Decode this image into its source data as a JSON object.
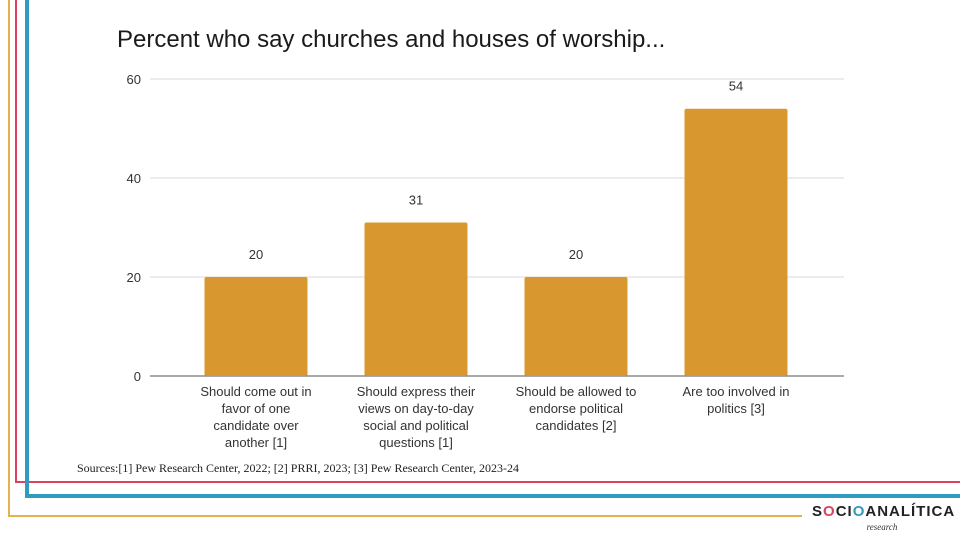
{
  "colors": {
    "bar": "#D9972F",
    "gold_line": "#E2B451",
    "red_line": "#D9435E",
    "blue_line": "#2E9BBF",
    "grid": "#d9d9d9",
    "baseline": "#555555"
  },
  "chart_data": {
    "type": "bar",
    "title": "Percent who say churches and houses of worship...",
    "categories": [
      "Should come out in favor of one candidate over another [1]",
      "Should express their views on day-to-day social and political questions [1]",
      "Should be allowed to endorse political candidates [2]",
      "Are too involved in politics [3]"
    ],
    "category_lines": [
      [
        "Should come out in",
        "favor of one",
        "candidate over",
        "another [1]"
      ],
      [
        "Should express their",
        "views on day-to-day",
        "social and political",
        "questions [1]"
      ],
      [
        "Should be allowed to",
        "endorse political",
        "candidates [2]"
      ],
      [
        "Are too involved in",
        "politics [3]"
      ]
    ],
    "values": [
      20,
      31,
      20,
      54
    ],
    "data_labels": [
      "20",
      "31",
      "20",
      "54"
    ],
    "xlabel": "",
    "ylabel": "",
    "ylim": [
      0,
      60
    ],
    "yticks": [
      0,
      20,
      40,
      60
    ],
    "grid": true,
    "legend": "none"
  },
  "footer": {
    "sources": "Sources:[1] Pew Research Center, 2022; [2] PRRI, 2023; [3] Pew Research Center, 2023-24"
  },
  "logo": {
    "name_parts": [
      "S",
      "O",
      "CI",
      "O",
      "ANALÍTICA"
    ],
    "subtitle": "research"
  }
}
